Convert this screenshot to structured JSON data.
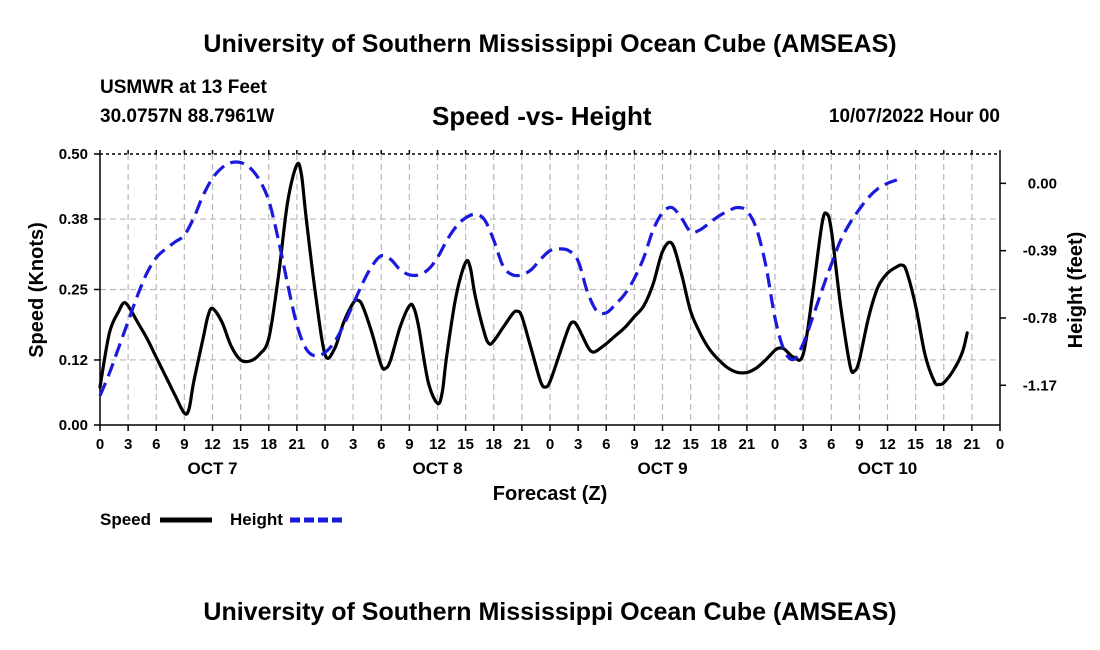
{
  "header": {
    "title": "University of Southern Mississippi Ocean Cube (AMSEAS)",
    "station": "USMWR at 13 Feet",
    "coordinates": "30.0757N  88.7961W",
    "datetime": "10/07/2022 Hour 00"
  },
  "footer": {
    "title": "University of Southern Mississippi Ocean Cube (AMSEAS)"
  },
  "chart_data": {
    "type": "line",
    "title": "Speed -vs- Height",
    "xlabel": "Forecast (Z)",
    "ylabel": "Speed (Knots)",
    "ylabel_right": "Height (feet)",
    "x_range": [
      0,
      96
    ],
    "ylim": [
      0,
      0.5
    ],
    "ylim_right": [
      -1.4,
      0.17
    ],
    "yticks": [
      "0.00",
      "0.12",
      "0.25",
      "0.38",
      "0.50"
    ],
    "yticks_right": [
      "0.00",
      "-0.39",
      "-0.78",
      "-1.17"
    ],
    "yticks_right_values": [
      0.0,
      -0.39,
      -0.78,
      -1.17
    ],
    "x_ticks": [
      "0",
      "3",
      "6",
      "9",
      "12",
      "15",
      "18",
      "21",
      "0",
      "3",
      "6",
      "9",
      "12",
      "15",
      "18",
      "21",
      "0",
      "3",
      "6",
      "9",
      "12",
      "15",
      "18",
      "21",
      "0",
      "3",
      "6",
      "9",
      "12",
      "15",
      "18",
      "21",
      "0"
    ],
    "day_labels": [
      "OCT 7",
      "OCT 8",
      "OCT 9",
      "OCT 10"
    ],
    "grid": true,
    "legend": "bottom-left",
    "series": [
      {
        "name": "Speed",
        "axis": "left",
        "color": "#000000",
        "style": "solid",
        "points": [
          [
            0,
            0.07
          ],
          [
            1,
            0.17
          ],
          [
            2,
            0.21
          ],
          [
            2.5,
            0.225
          ],
          [
            3,
            0.22
          ],
          [
            4,
            0.19
          ],
          [
            5,
            0.16
          ],
          [
            6,
            0.125
          ],
          [
            7,
            0.09
          ],
          [
            8,
            0.055
          ],
          [
            9,
            0.022
          ],
          [
            9.5,
            0.03
          ],
          [
            10,
            0.08
          ],
          [
            11,
            0.16
          ],
          [
            11.5,
            0.2
          ],
          [
            12,
            0.215
          ],
          [
            13,
            0.19
          ],
          [
            14,
            0.145
          ],
          [
            15,
            0.12
          ],
          [
            16,
            0.118
          ],
          [
            17,
            0.13
          ],
          [
            18,
            0.16
          ],
          [
            19,
            0.27
          ],
          [
            20,
            0.41
          ],
          [
            21,
            0.48
          ],
          [
            21.5,
            0.46
          ],
          [
            22,
            0.38
          ],
          [
            23,
            0.24
          ],
          [
            24,
            0.13
          ],
          [
            25,
            0.14
          ],
          [
            26,
            0.19
          ],
          [
            27,
            0.225
          ],
          [
            27.5,
            0.23
          ],
          [
            28,
            0.22
          ],
          [
            29,
            0.17
          ],
          [
            30,
            0.11
          ],
          [
            30.5,
            0.105
          ],
          [
            31,
            0.12
          ],
          [
            32,
            0.18
          ],
          [
            33,
            0.22
          ],
          [
            33.5,
            0.215
          ],
          [
            34,
            0.18
          ],
          [
            35,
            0.08
          ],
          [
            36,
            0.04
          ],
          [
            36.5,
            0.06
          ],
          [
            37,
            0.13
          ],
          [
            38,
            0.24
          ],
          [
            39,
            0.3
          ],
          [
            39.5,
            0.29
          ],
          [
            40,
            0.24
          ],
          [
            41,
            0.17
          ],
          [
            41.5,
            0.15
          ],
          [
            42,
            0.155
          ],
          [
            43,
            0.18
          ],
          [
            44,
            0.205
          ],
          [
            44.5,
            0.21
          ],
          [
            45,
            0.2
          ],
          [
            46,
            0.14
          ],
          [
            47,
            0.08
          ],
          [
            47.5,
            0.07
          ],
          [
            48,
            0.08
          ],
          [
            49,
            0.13
          ],
          [
            50,
            0.18
          ],
          [
            50.5,
            0.19
          ],
          [
            51,
            0.18
          ],
          [
            52,
            0.145
          ],
          [
            52.5,
            0.135
          ],
          [
            53,
            0.137
          ],
          [
            54,
            0.15
          ],
          [
            55,
            0.165
          ],
          [
            56,
            0.18
          ],
          [
            57,
            0.2
          ],
          [
            58,
            0.22
          ],
          [
            59,
            0.26
          ],
          [
            60,
            0.32
          ],
          [
            61,
            0.335
          ],
          [
            62,
            0.28
          ],
          [
            63,
            0.21
          ],
          [
            64,
            0.17
          ],
          [
            65,
            0.14
          ],
          [
            66,
            0.12
          ],
          [
            67,
            0.105
          ],
          [
            68,
            0.097
          ],
          [
            69,
            0.097
          ],
          [
            70,
            0.105
          ],
          [
            71,
            0.12
          ],
          [
            72,
            0.138
          ],
          [
            72.5,
            0.142
          ],
          [
            73,
            0.14
          ],
          [
            74,
            0.125
          ],
          [
            75,
            0.13
          ],
          [
            76,
            0.24
          ],
          [
            77,
            0.37
          ],
          [
            77.5,
            0.39
          ],
          [
            78,
            0.36
          ],
          [
            79,
            0.22
          ],
          [
            80,
            0.11
          ],
          [
            80.5,
            0.1
          ],
          [
            81,
            0.12
          ],
          [
            82,
            0.2
          ],
          [
            83,
            0.255
          ],
          [
            84,
            0.28
          ],
          [
            85,
            0.292
          ],
          [
            85.5,
            0.295
          ],
          [
            86,
            0.285
          ],
          [
            87,
            0.22
          ],
          [
            88,
            0.13
          ],
          [
            89,
            0.08
          ],
          [
            89.5,
            0.075
          ],
          [
            90,
            0.078
          ],
          [
            91,
            0.1
          ],
          [
            92,
            0.135
          ],
          [
            92.5,
            0.17
          ]
        ]
      },
      {
        "name": "Height",
        "axis": "right",
        "color": "#1a1adc",
        "style": "dashed",
        "points": [
          [
            0,
            -1.23
          ],
          [
            1,
            -1.1
          ],
          [
            2,
            -0.95
          ],
          [
            3,
            -0.8
          ],
          [
            4,
            -0.65
          ],
          [
            5,
            -0.52
          ],
          [
            6,
            -0.43
          ],
          [
            7,
            -0.38
          ],
          [
            8,
            -0.34
          ],
          [
            9,
            -0.3
          ],
          [
            10,
            -0.2
          ],
          [
            11,
            -0.07
          ],
          [
            12,
            0.03
          ],
          [
            13,
            0.09
          ],
          [
            14,
            0.12
          ],
          [
            15,
            0.12
          ],
          [
            16,
            0.09
          ],
          [
            17,
            0.02
          ],
          [
            18,
            -0.1
          ],
          [
            19,
            -0.32
          ],
          [
            20,
            -0.58
          ],
          [
            21,
            -0.82
          ],
          [
            22,
            -0.96
          ],
          [
            23,
            -1.0
          ],
          [
            24,
            -0.98
          ],
          [
            25,
            -0.92
          ],
          [
            26,
            -0.82
          ],
          [
            27,
            -0.7
          ],
          [
            28,
            -0.58
          ],
          [
            29,
            -0.48
          ],
          [
            30,
            -0.42
          ],
          [
            31,
            -0.44
          ],
          [
            32,
            -0.5
          ],
          [
            33,
            -0.53
          ],
          [
            34,
            -0.53
          ],
          [
            35,
            -0.5
          ],
          [
            36,
            -0.43
          ],
          [
            37,
            -0.33
          ],
          [
            38,
            -0.25
          ],
          [
            39,
            -0.2
          ],
          [
            40,
            -0.18
          ],
          [
            41,
            -0.21
          ],
          [
            42,
            -0.33
          ],
          [
            43,
            -0.48
          ],
          [
            44,
            -0.53
          ],
          [
            45,
            -0.53
          ],
          [
            46,
            -0.5
          ],
          [
            47,
            -0.44
          ],
          [
            48,
            -0.39
          ],
          [
            49,
            -0.38
          ],
          [
            50,
            -0.39
          ],
          [
            51,
            -0.45
          ],
          [
            52,
            -0.63
          ],
          [
            53,
            -0.74
          ],
          [
            54,
            -0.75
          ],
          [
            55,
            -0.7
          ],
          [
            56,
            -0.64
          ],
          [
            57,
            -0.55
          ],
          [
            58,
            -0.43
          ],
          [
            59,
            -0.27
          ],
          [
            60,
            -0.17
          ],
          [
            61,
            -0.14
          ],
          [
            62,
            -0.2
          ],
          [
            63,
            -0.28
          ],
          [
            64,
            -0.27
          ],
          [
            65,
            -0.23
          ],
          [
            66,
            -0.19
          ],
          [
            67,
            -0.16
          ],
          [
            68,
            -0.14
          ],
          [
            69,
            -0.16
          ],
          [
            70,
            -0.26
          ],
          [
            71,
            -0.47
          ],
          [
            72,
            -0.78
          ],
          [
            73,
            -0.97
          ],
          [
            74,
            -1.02
          ],
          [
            75,
            -0.93
          ],
          [
            76,
            -0.78
          ],
          [
            77,
            -0.62
          ],
          [
            78,
            -0.47
          ],
          [
            79,
            -0.33
          ],
          [
            80,
            -0.23
          ],
          [
            81,
            -0.15
          ],
          [
            82,
            -0.08
          ],
          [
            83,
            -0.03
          ],
          [
            84,
            0.0
          ],
          [
            85,
            0.02
          ]
        ]
      }
    ]
  },
  "legend": {
    "items": [
      {
        "label": "Speed",
        "color": "#000000",
        "style": "solid"
      },
      {
        "label": "Height",
        "color": "#1a1adc",
        "style": "dashed"
      }
    ]
  }
}
